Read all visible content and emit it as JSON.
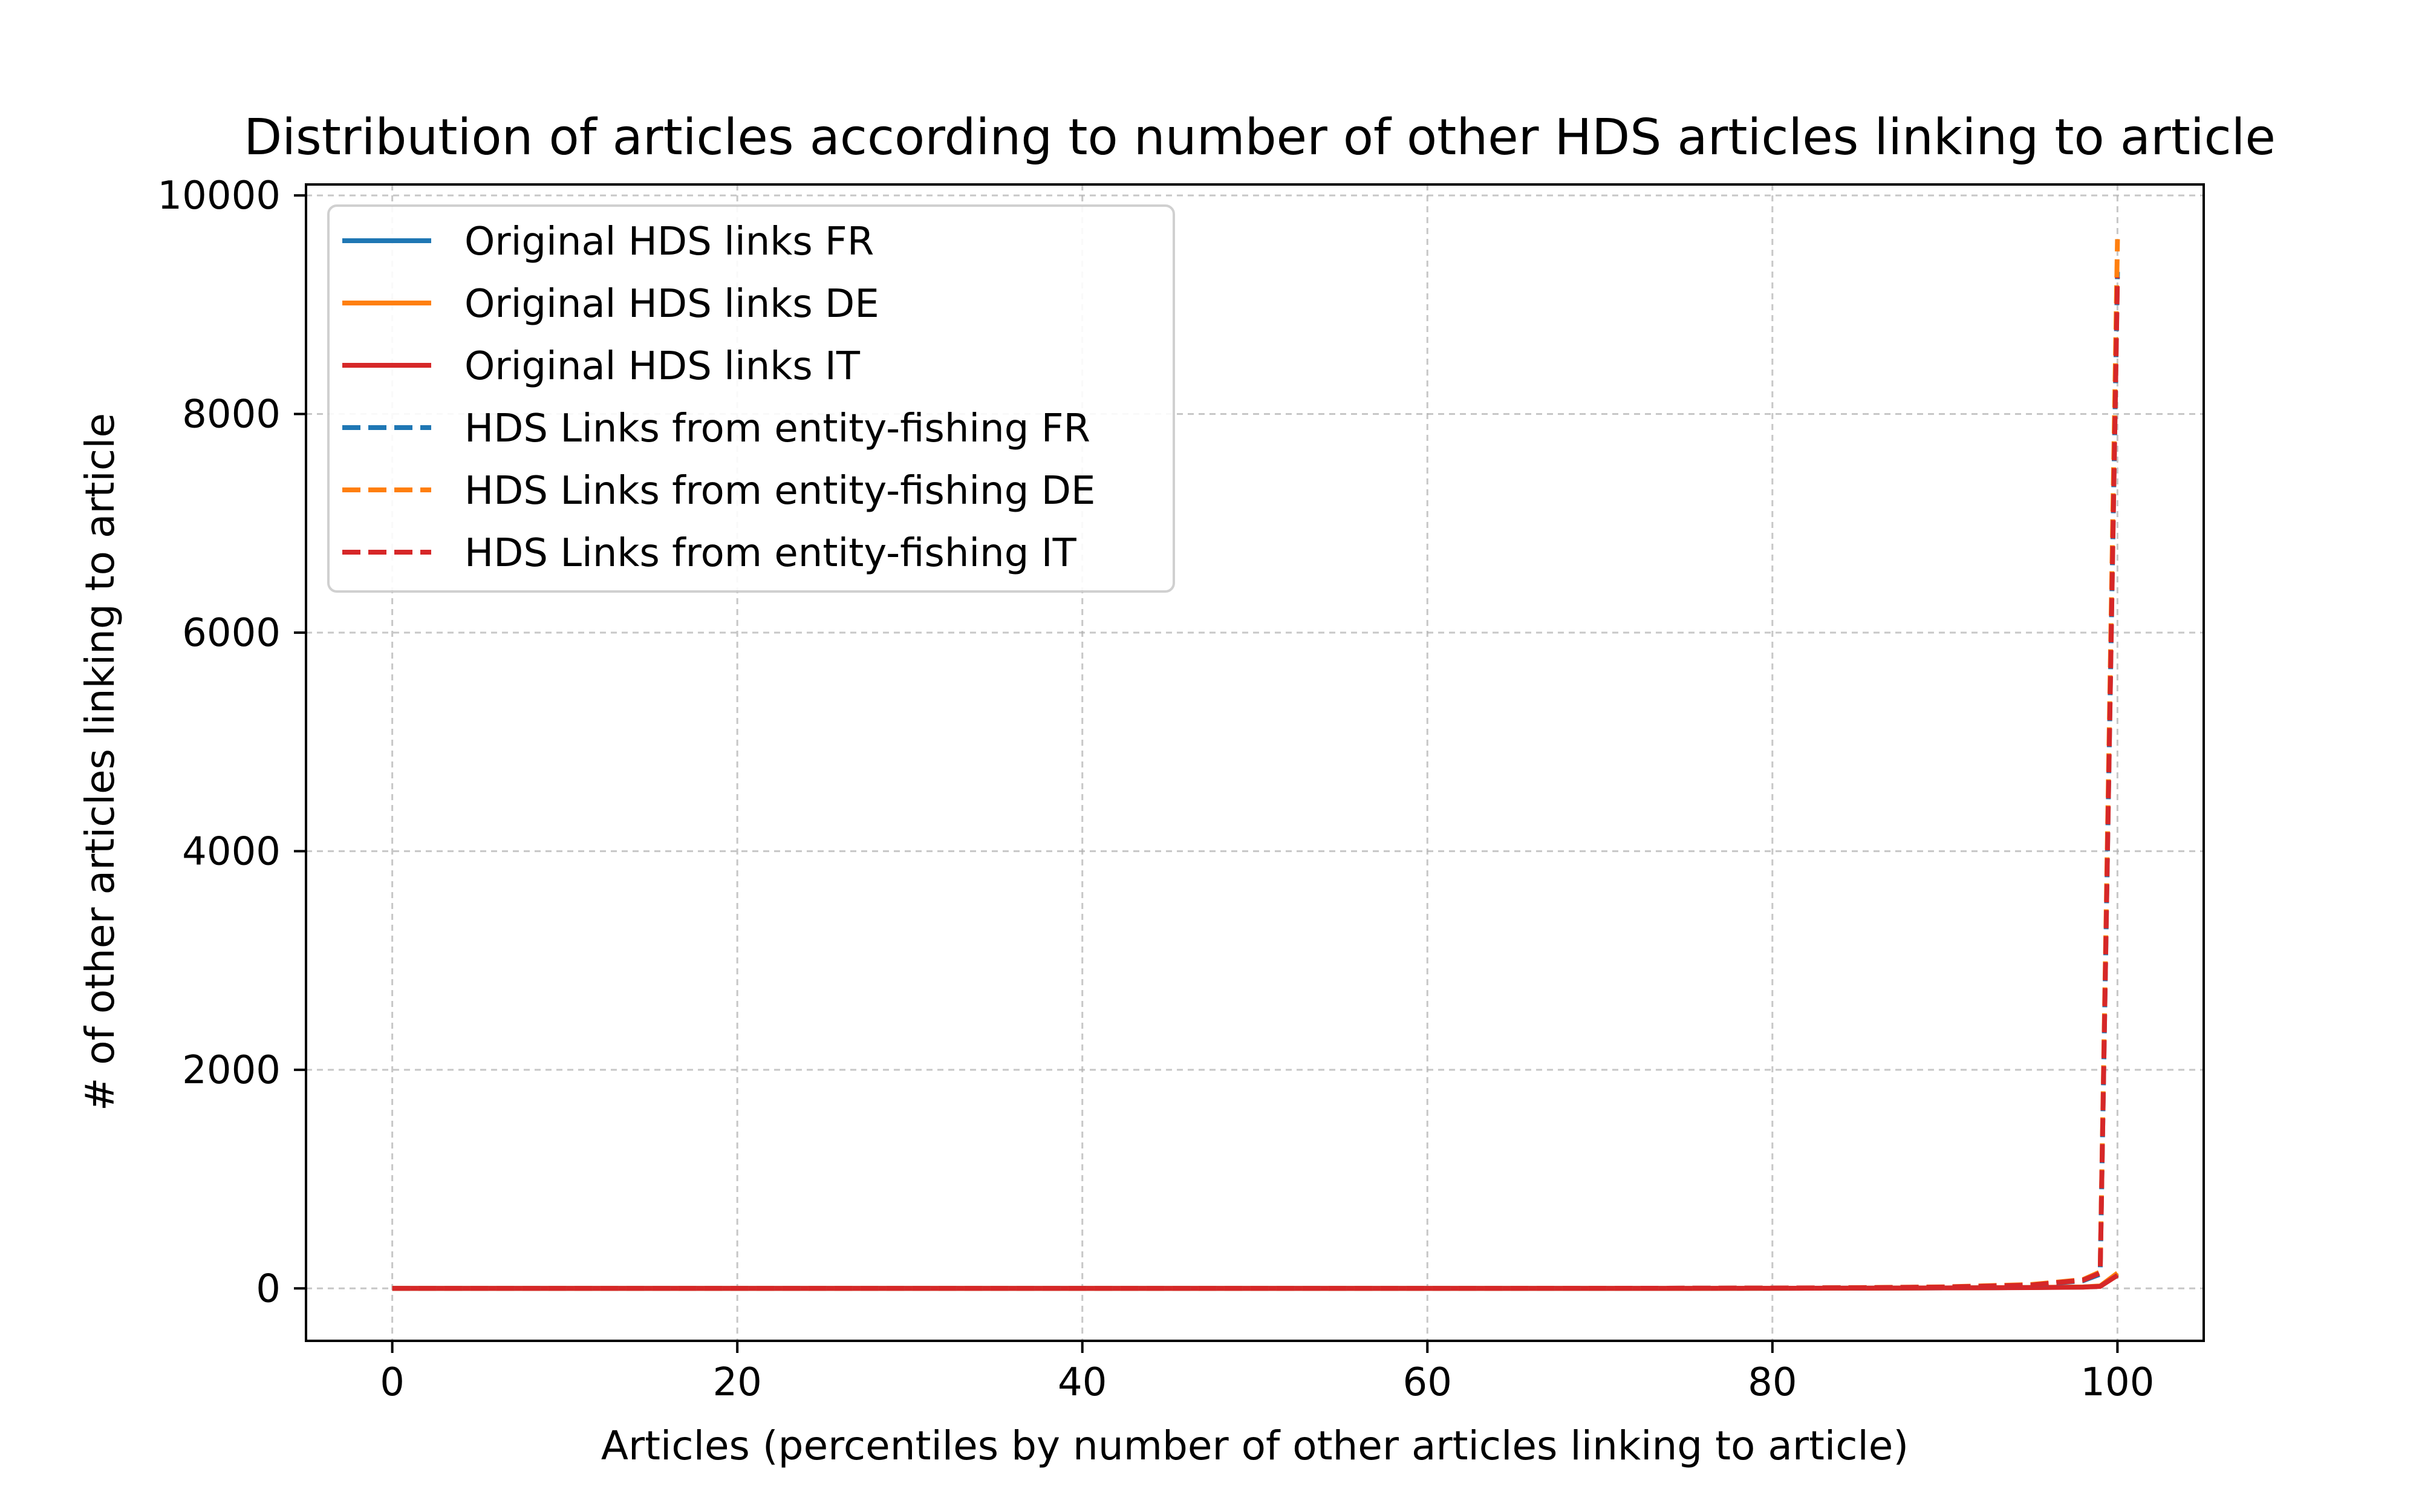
{
  "chart_data": {
    "type": "line",
    "title": "Distribution of articles according to number of other HDS articles linking to article",
    "xlabel": "Articles (percentiles by number of other articles linking to article)",
    "ylabel": "# of other articles linking to article",
    "xlim": [
      -5,
      105
    ],
    "ylim": [
      -480,
      10100
    ],
    "xticks": [
      0,
      20,
      40,
      60,
      80,
      100
    ],
    "yticks": [
      0,
      2000,
      4000,
      6000,
      8000,
      10000
    ],
    "xtick_labels": [
      "0",
      "20",
      "40",
      "60",
      "80",
      "100"
    ],
    "ytick_labels": [
      "0",
      "2000",
      "4000",
      "6000",
      "8000",
      "10000"
    ],
    "grid": true,
    "legend_position": "upper-left",
    "series": [
      {
        "name": "Original HDS links FR",
        "color": "#1f77b4",
        "style": "solid",
        "x": [
          0,
          10,
          20,
          30,
          40,
          50,
          60,
          70,
          80,
          85,
          90,
          95,
          98,
          99,
          100
        ],
        "y": [
          0,
          0,
          0,
          0,
          0,
          0,
          0,
          0,
          1,
          2,
          4,
          8,
          12,
          20,
          130
        ]
      },
      {
        "name": "Original HDS links DE",
        "color": "#ff7f0e",
        "style": "solid",
        "x": [
          0,
          10,
          20,
          30,
          40,
          50,
          60,
          70,
          80,
          85,
          90,
          95,
          98,
          99,
          100
        ],
        "y": [
          0,
          0,
          0,
          0,
          0,
          0,
          0,
          0,
          1,
          2,
          4,
          8,
          13,
          22,
          140
        ]
      },
      {
        "name": "Original HDS links IT",
        "color": "#d62728",
        "style": "solid",
        "x": [
          0,
          10,
          20,
          30,
          40,
          50,
          60,
          70,
          80,
          85,
          90,
          95,
          98,
          99,
          100
        ],
        "y": [
          0,
          0,
          0,
          0,
          0,
          0,
          0,
          0,
          1,
          2,
          4,
          7,
          11,
          18,
          120
        ]
      },
      {
        "name": "HDS Links from entity-fishing FR",
        "color": "#1f77b4",
        "style": "dashed",
        "x": [
          0,
          10,
          20,
          30,
          40,
          50,
          60,
          70,
          80,
          85,
          90,
          95,
          98,
          99,
          100
        ],
        "y": [
          0,
          0,
          0,
          0,
          0,
          0,
          0,
          1,
          3,
          6,
          12,
          30,
          70,
          130,
          9300
        ]
      },
      {
        "name": "HDS Links from entity-fishing DE",
        "color": "#ff7f0e",
        "style": "dashed",
        "x": [
          0,
          10,
          20,
          30,
          40,
          50,
          60,
          70,
          80,
          85,
          90,
          95,
          98,
          99,
          100
        ],
        "y": [
          0,
          0,
          0,
          0,
          0,
          0,
          0,
          1,
          3,
          7,
          14,
          35,
          80,
          150,
          9600
        ]
      },
      {
        "name": "HDS Links from entity-fishing IT",
        "color": "#d62728",
        "style": "dashed",
        "x": [
          0,
          10,
          20,
          30,
          40,
          50,
          60,
          70,
          80,
          85,
          90,
          95,
          98,
          99,
          100
        ],
        "y": [
          0,
          0,
          0,
          0,
          0,
          0,
          0,
          1,
          3,
          6,
          12,
          30,
          75,
          140,
          9250
        ]
      }
    ]
  }
}
